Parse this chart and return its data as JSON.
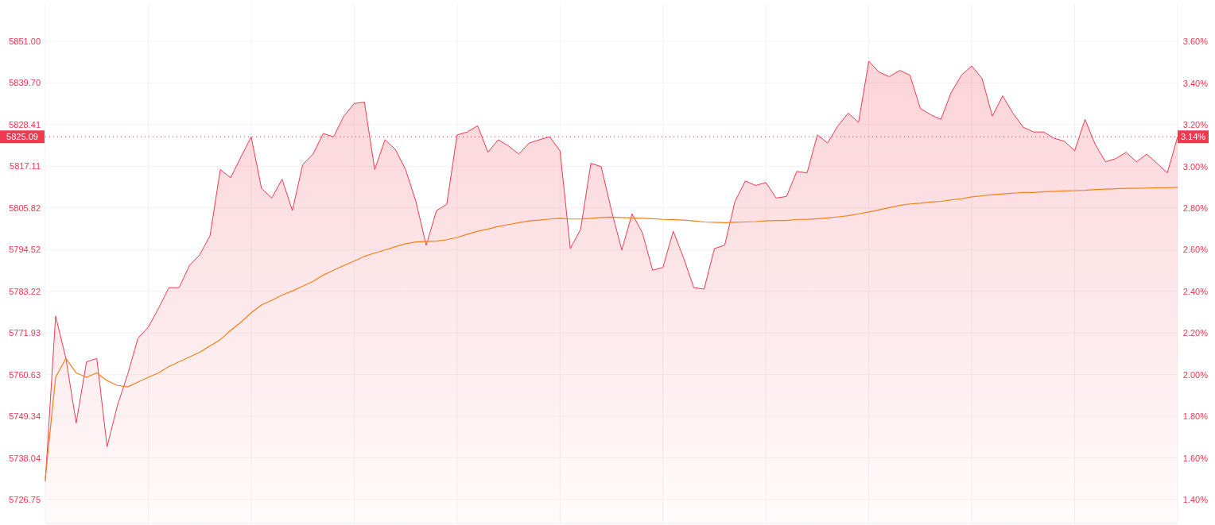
{
  "chart_data": {
    "type": "area",
    "categories": [
      null,
      null,
      null,
      null,
      null,
      null,
      null,
      null,
      null,
      null,
      null,
      null,
      null,
      null,
      null,
      null,
      null,
      null,
      null,
      null,
      null,
      null,
      null,
      null,
      null,
      null,
      null,
      null,
      null,
      null,
      null,
      null,
      null,
      null,
      null,
      null,
      null,
      null,
      null,
      null,
      null,
      null,
      null,
      null,
      null,
      null,
      null,
      null,
      null,
      null,
      null,
      null,
      null,
      null,
      null,
      null,
      null,
      null,
      null,
      null,
      null,
      null,
      null,
      null,
      null,
      null,
      null,
      null,
      null,
      null,
      null,
      null,
      null,
      null,
      null,
      null,
      null,
      null,
      null,
      null,
      null,
      null,
      null,
      null,
      null,
      null,
      null,
      null,
      null,
      null,
      null,
      null,
      null,
      null,
      null,
      null,
      null,
      null,
      null,
      null,
      null,
      null,
      null,
      null,
      null,
      null,
      null,
      null,
      null,
      null,
      null
    ],
    "series": [
      {
        "color": "#f0384f",
        "values": [
          5731.7,
          5776.5,
          5765.0,
          5747.5,
          5764.1,
          5765.0,
          5741.1,
          5752.2,
          5760.7,
          5770.5,
          5773.5,
          5778.6,
          5784.2,
          5784.2,
          5790.2,
          5793.1,
          5798.3,
          5816.2,
          5814.0,
          5819.6,
          5825.1,
          5811.1,
          5808.5,
          5813.6,
          5805.1,
          5817.5,
          5820.4,
          5826.0,
          5825.1,
          5830.7,
          5834.1,
          5834.5,
          5816.2,
          5824.3,
          5821.7,
          5816.2,
          5807.6,
          5795.7,
          5805.1,
          5806.8,
          5825.6,
          5826.4,
          5828.1,
          5820.9,
          5824.3,
          5822.6,
          5820.4,
          5823.4,
          5824.3,
          5825.1,
          5821.3,
          5794.8,
          5800.0,
          5817.9,
          5817.0,
          5805.1,
          5794.4,
          5804.2,
          5799.1,
          5788.9,
          5789.7,
          5799.5,
          5792.3,
          5784.2,
          5783.8,
          5794.8,
          5795.7,
          5807.6,
          5813.1,
          5811.9,
          5812.7,
          5808.5,
          5808.9,
          5815.7,
          5815.3,
          5825.6,
          5823.4,
          5828.1,
          5831.5,
          5829.0,
          5845.6,
          5842.6,
          5841.4,
          5843.1,
          5841.8,
          5832.8,
          5831.1,
          5829.8,
          5837.1,
          5841.8,
          5844.3,
          5840.9,
          5830.7,
          5836.2,
          5831.5,
          5827.7,
          5826.4,
          5826.4,
          5824.7,
          5823.9,
          5821.3,
          5829.8,
          5823.0,
          5818.3,
          5819.2,
          5820.9,
          5818.3,
          5820.4,
          5817.9,
          5815.3,
          5825.1
        ]
      },
      {
        "type": "line",
        "color": "#f57f17",
        "values": [
          5732.5,
          5759.9,
          5765.0,
          5761.1,
          5759.9,
          5761.1,
          5759.0,
          5757.7,
          5757.3,
          5758.6,
          5759.9,
          5761.1,
          5762.8,
          5764.1,
          5765.4,
          5766.7,
          5768.4,
          5770.1,
          5772.6,
          5774.8,
          5777.4,
          5779.5,
          5780.8,
          5782.2,
          5783.3,
          5784.6,
          5785.9,
          5787.6,
          5788.9,
          5790.2,
          5791.4,
          5792.7,
          5793.6,
          5794.4,
          5795.3,
          5796.1,
          5796.6,
          5796.7,
          5796.8,
          5797.2,
          5797.8,
          5798.7,
          5799.5,
          5800.1,
          5800.8,
          5801.3,
          5801.8,
          5802.3,
          5802.5,
          5802.8,
          5803.0,
          5802.8,
          5802.8,
          5803.0,
          5803.2,
          5803.3,
          5803.2,
          5803.1,
          5803.0,
          5802.9,
          5802.7,
          5802.6,
          5802.5,
          5802.3,
          5802.0,
          5801.9,
          5801.8,
          5801.9,
          5802.0,
          5802.1,
          5802.3,
          5802.4,
          5802.4,
          5802.7,
          5802.7,
          5802.9,
          5803.1,
          5803.4,
          5803.7,
          5804.2,
          5804.7,
          5805.3,
          5805.9,
          5806.5,
          5806.9,
          5807.1,
          5807.4,
          5807.6,
          5808.0,
          5808.3,
          5808.8,
          5809.1,
          5809.4,
          5809.6,
          5809.8,
          5810.0,
          5810.0,
          5810.2,
          5810.3,
          5810.4,
          5810.5,
          5810.6,
          5810.8,
          5810.9,
          5811.0,
          5811.1,
          5811.1,
          5811.2,
          5811.3,
          5811.3,
          5811.4
        ]
      }
    ],
    "ylim": [
      5720.5,
      5861.1
    ],
    "yticks": [
      {
        "value": 5726.75,
        "label": "5726.75"
      },
      {
        "value": 5738.04,
        "label": "5738.04"
      },
      {
        "value": 5749.34,
        "label": "5749.34"
      },
      {
        "value": 5760.63,
        "label": "5760.63"
      },
      {
        "value": 5771.93,
        "label": "5771.93"
      },
      {
        "value": 5783.22,
        "label": "5783.22"
      },
      {
        "value": 5794.52,
        "label": "5794.52"
      },
      {
        "value": 5805.82,
        "label": "5805.82"
      },
      {
        "value": 5817.11,
        "label": "5817.11"
      },
      {
        "value": 5828.41,
        "label": "5828.41"
      },
      {
        "value": 5839.7,
        "label": "5839.70"
      },
      {
        "value": 5851.0,
        "label": "5851.00"
      }
    ],
    "y2lim": [
      1.29,
      3.78
    ],
    "y2ticks": [
      {
        "value": 1.4,
        "label": "1.40%"
      },
      {
        "value": 1.6,
        "label": "1.60%"
      },
      {
        "value": 1.8,
        "label": "1.80%"
      },
      {
        "value": 2.0,
        "label": "2.00%"
      },
      {
        "value": 2.2,
        "label": "2.20%"
      },
      {
        "value": 2.4,
        "label": "2.40%"
      },
      {
        "value": 2.6,
        "label": "2.60%"
      },
      {
        "value": 2.8,
        "label": "2.80%"
      },
      {
        "value": 3.0,
        "label": "3.00%"
      },
      {
        "value": 3.2,
        "label": "3.20%"
      },
      {
        "value": 3.4,
        "label": "3.40%"
      },
      {
        "value": 3.6,
        "label": "3.60%"
      }
    ],
    "ref_lines": [
      {
        "axis": "y",
        "value": 5825.09,
        "label": "5825.09",
        "color": "#f0384f",
        "line_style": "dotted"
      }
    ],
    "annotations": [
      "3.14%"
    ],
    "grid": true
  }
}
